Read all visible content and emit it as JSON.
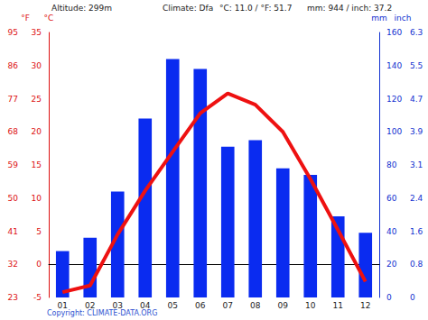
{
  "chart_data": {
    "type": "bar",
    "annotations": [
      "Altitude: 299m",
      "Climate: Dfa",
      "°C: 11.0 / °F: 51.7",
      "mm: 944 / inch: 37.2",
      "Copyright: CLIMATE-DATA.ORG"
    ],
    "categories": [
      "01",
      "02",
      "03",
      "04",
      "05",
      "06",
      "07",
      "08",
      "09",
      "10",
      "11",
      "12"
    ],
    "series": [
      {
        "type": "bar",
        "axis": "y2",
        "color": "#0a2bf0",
        "values": [
          28,
          36,
          64,
          108,
          144,
          138,
          91,
          95,
          78,
          74,
          49,
          39
        ]
      },
      {
        "type": "line",
        "color": "#ee1111",
        "values": [
          -4.2,
          -3.2,
          4.5,
          11.1,
          17.0,
          22.8,
          25.8,
          24.1,
          20.0,
          12.9,
          5.2,
          -2.6
        ]
      }
    ],
    "y_label": "°C",
    "ylim": [
      -5,
      35
    ],
    "yticks": [
      -5,
      0,
      5,
      10,
      15,
      20,
      25,
      30,
      35
    ],
    "y_f_label": "°F",
    "y_f_ticks": [
      {
        "value": -5,
        "label": "23"
      },
      {
        "value": 0,
        "label": "32"
      },
      {
        "value": 5,
        "label": "41"
      },
      {
        "value": 10,
        "label": "50"
      },
      {
        "value": 15,
        "label": "59"
      },
      {
        "value": 20,
        "label": "68"
      },
      {
        "value": 25,
        "label": "77"
      },
      {
        "value": 30,
        "label": "86"
      },
      {
        "value": 35,
        "label": "95"
      }
    ],
    "y2_label": "mm",
    "y2lim": [
      0,
      160
    ],
    "y2ticks": [
      0,
      20,
      40,
      60,
      80,
      100,
      120,
      140,
      160
    ],
    "y2_inch_label": "inch",
    "y2_inch_ticks": [
      {
        "value": 0,
        "label": "0"
      },
      {
        "value": 20,
        "label": "0.8"
      },
      {
        "value": 40,
        "label": "1.6"
      },
      {
        "value": 60,
        "label": "2.4"
      },
      {
        "value": 80,
        "label": "3.1"
      },
      {
        "value": 100,
        "label": "3.9"
      },
      {
        "value": 120,
        "label": "4.7"
      },
      {
        "value": 140,
        "label": "5.5"
      },
      {
        "value": 160,
        "label": "6.3"
      }
    ],
    "grid": false
  }
}
